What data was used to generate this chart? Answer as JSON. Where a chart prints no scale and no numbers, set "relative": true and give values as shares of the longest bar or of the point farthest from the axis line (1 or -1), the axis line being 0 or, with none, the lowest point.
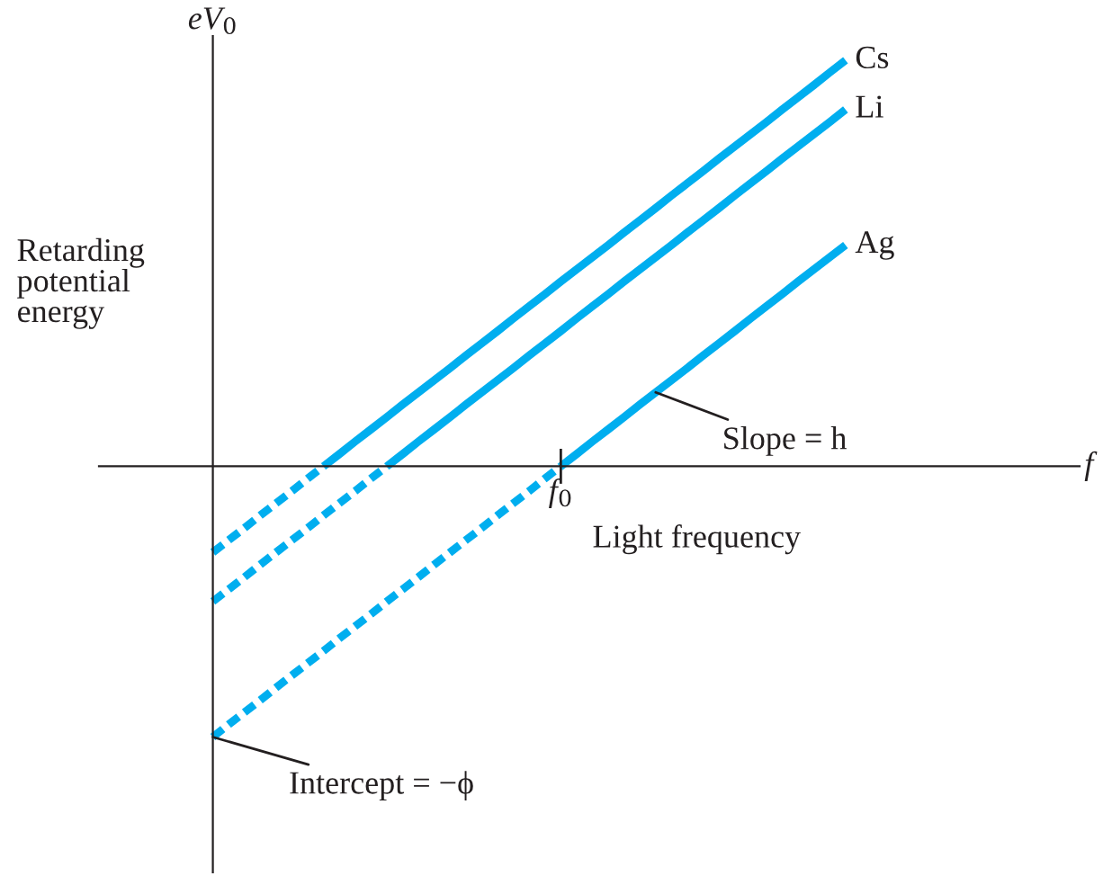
{
  "chart_data": {
    "type": "line",
    "relative": true,
    "xlabel": "Light frequency",
    "ylabel": "Retarding\npotential\nenergy",
    "categories": [
      null,
      null,
      null,
      null,
      null,
      null,
      null,
      null,
      null,
      null,
      null,
      null,
      null,
      null,
      null,
      null,
      null,
      null,
      null,
      null,
      null,
      null,
      null,
      null,
      null,
      null,
      null,
      null,
      null,
      null,
      null,
      null,
      null,
      null,
      null,
      null,
      null,
      null,
      null,
      null,
      null
    ],
    "series": [
      {
        "name": "Cs",
        "color": "#00aeef",
        "line_style": "solid",
        "values": [
          null,
          null,
          null,
          null,
          null,
          null,
          null,
          0,
          0.03,
          0.061,
          0.091,
          0.121,
          0.152,
          0.182,
          0.212,
          0.242,
          0.273,
          0.303,
          0.333,
          0.364,
          0.394,
          0.424,
          0.455,
          0.485,
          0.515,
          0.545,
          0.576,
          0.606,
          0.636,
          0.667,
          0.697,
          0.727,
          0.758,
          0.788,
          0.818,
          0.848,
          0.879,
          0.909,
          0.939,
          0.97,
          1.0
        ]
      },
      {
        "color": "#00aeef",
        "line_style": "dashed",
        "values": [
          -0.212,
          -0.182,
          -0.152,
          -0.121,
          -0.091,
          -0.061,
          -0.03,
          0,
          null,
          null,
          null,
          null,
          null,
          null,
          null,
          null,
          null,
          null,
          null,
          null,
          null,
          null,
          null,
          null,
          null,
          null,
          null,
          null,
          null,
          null,
          null,
          null,
          null,
          null,
          null,
          null,
          null,
          null,
          null,
          null,
          null
        ]
      },
      {
        "name": "Li",
        "color": "#00aeef",
        "line_style": "solid",
        "values": [
          null,
          null,
          null,
          null,
          null,
          null,
          null,
          null,
          null,
          null,
          null,
          0,
          0.03,
          0.061,
          0.091,
          0.121,
          0.152,
          0.182,
          0.212,
          0.242,
          0.273,
          0.303,
          0.333,
          0.364,
          0.394,
          0.424,
          0.455,
          0.485,
          0.515,
          0.545,
          0.576,
          0.606,
          0.636,
          0.667,
          0.697,
          0.727,
          0.758,
          0.788,
          0.818,
          0.848,
          0.879
        ]
      },
      {
        "color": "#00aeef",
        "line_style": "dashed",
        "values": [
          -0.333,
          -0.303,
          -0.273,
          -0.242,
          -0.212,
          -0.182,
          -0.152,
          -0.121,
          -0.091,
          -0.061,
          -0.03,
          0,
          null,
          null,
          null,
          null,
          null,
          null,
          null,
          null,
          null,
          null,
          null,
          null,
          null,
          null,
          null,
          null,
          null,
          null,
          null,
          null,
          null,
          null,
          null,
          null,
          null,
          null,
          null,
          null,
          null
        ]
      },
      {
        "name": "Ag",
        "color": "#00aeef",
        "line_style": "solid",
        "values": [
          null,
          null,
          null,
          null,
          null,
          null,
          null,
          null,
          null,
          null,
          null,
          null,
          null,
          null,
          null,
          null,
          null,
          null,
          null,
          null,
          null,
          null,
          0,
          0.03,
          0.061,
          0.091,
          0.121,
          0.152,
          0.182,
          0.212,
          0.242,
          0.273,
          0.303,
          0.333,
          0.364,
          0.394,
          0.424,
          0.455,
          0.485,
          0.515,
          0.545
        ]
      },
      {
        "color": "#00aeef",
        "line_style": "dashed",
        "values": [
          -0.667,
          -0.636,
          -0.606,
          -0.576,
          -0.545,
          -0.515,
          -0.485,
          -0.455,
          -0.424,
          -0.394,
          -0.364,
          -0.333,
          -0.303,
          -0.273,
          -0.242,
          -0.212,
          -0.182,
          -0.152,
          -0.121,
          -0.091,
          -0.061,
          -0.03,
          0,
          null,
          null,
          null,
          null,
          null,
          null,
          null,
          null,
          null,
          null,
          null,
          null,
          null,
          null,
          null,
          null,
          null,
          null
        ]
      }
    ],
    "annotations": [
      "eV$_{0}$",
      "f",
      "f$_{0}$",
      "Slope = h",
      "Intercept = −ϕ"
    ],
    "grid": false,
    "legend": false
  }
}
